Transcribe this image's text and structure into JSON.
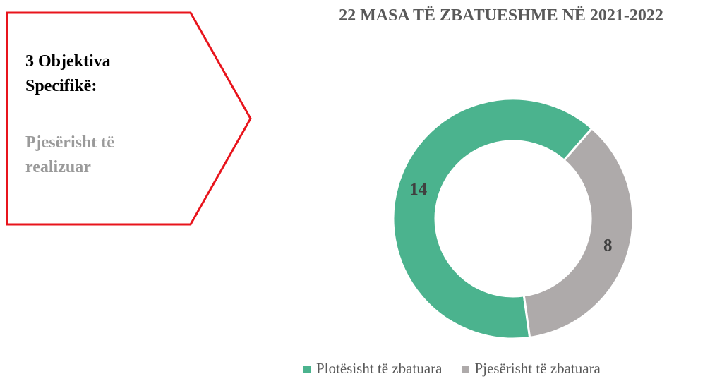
{
  "callout": {
    "title": "3 Objektiva Specifikë:",
    "status": "Pjesërisht të realizuar"
  },
  "chart_data": {
    "type": "donut",
    "title": "22 MASA TË ZBATUESHME NË 2021-2022",
    "categories": [
      "Plotësisht të zbatuara",
      "Pjesërisht të zbatuara"
    ],
    "values": [
      14,
      8
    ],
    "colors": [
      "#4bb38e",
      "#aeaaaa"
    ],
    "legend": "bottom"
  }
}
